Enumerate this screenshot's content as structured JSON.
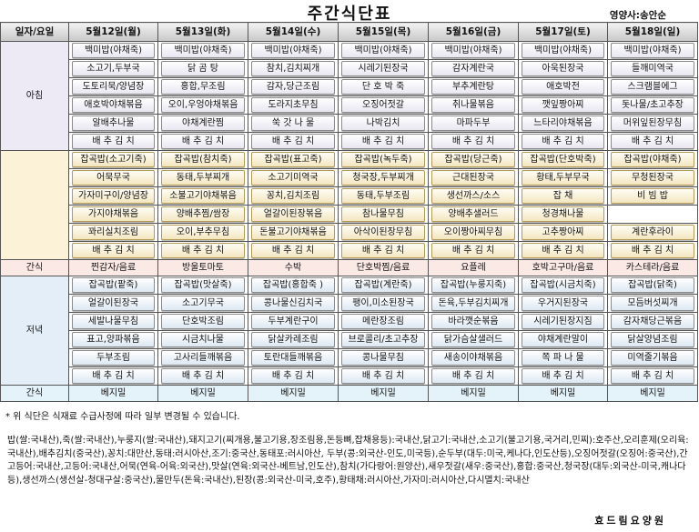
{
  "title": "주간식단표",
  "nutritionist": "영양사:송안순",
  "header": [
    "일자/요일",
    "5월12일(월)",
    "5월13일(화)",
    "5월14일(수)",
    "5월15일(목)",
    "5월16일(금)",
    "5월17일(토)",
    "5월18일(일)"
  ],
  "meals": [
    {
      "label": "아침",
      "rows": [
        [
          "백미밥(야채죽)",
          "백미밥(야채죽)",
          "백미밥(야채죽)",
          "백미밥(야채죽)",
          "백미밥(야채죽)",
          "백미밥(야채죽)",
          "백미밥(야채죽)"
        ],
        [
          "소고기,두부국",
          "닭 곰 탕",
          "참치,김치찌개",
          "시레기된장국",
          "감자계란국",
          "아욱된장국",
          "들깨미역국"
        ],
        [
          "도토리묵/양념장",
          "홍합,무조림",
          "감자,당근조림",
          "단 호 박 죽",
          "부추계란탕",
          "애호박전",
          "스크램블에그"
        ],
        [
          "애호박야채볶음",
          "오이,우엉야채볶음",
          "도라지초무침",
          "오징어젓갈",
          "취나물볶음",
          "깻잎짱아찌",
          "돗나물/초고추장"
        ],
        [
          "알배추나물",
          "야채계란찜",
          "쑥 갓 나 물",
          "나박김치",
          "마파두부",
          "느타리야채볶음",
          "머위잎된장무침"
        ],
        [
          "배 추 김 치",
          "배 추 김 치",
          "배 추 김 치",
          "배 추 김 치",
          "배 추 김 치",
          "배 추 김 치",
          "배 추 김 치"
        ]
      ]
    },
    {
      "label": "",
      "rows": [
        [
          "잡곡밥(소고기죽)",
          "잡곡밥(참치죽)",
          "잡곡밥(표고죽)",
          "잡곡밥(녹두죽)",
          "잡곡밥(당근죽)",
          "잡곡밥(단호박죽)",
          "잡곡밥(야채죽)"
        ],
        [
          "어묵무국",
          "동태,두부찌개",
          "소고기미역국",
          "청국장,두부찌개",
          "근대된장국",
          "황태,두부무국",
          "무청된장국"
        ],
        [
          "가자미구이/양념장",
          "소불고기야채볶음",
          "꽁치,김치조림",
          "동태,두부조림",
          "생선까스/소스",
          "잡 채",
          "비 빔 밥"
        ],
        [
          "가지야채볶음",
          "양배추찜/쌈장",
          "얼갈이된장볶음",
          "참나물무침",
          "양배추샐러드",
          "청경채나물",
          ""
        ],
        [
          "꽈리실치조림",
          "오이,부추무침",
          "돈불고기야채볶음",
          "아삭이된장무침",
          "오이짱아찌무침",
          "고추짱아찌",
          "계란후라이"
        ],
        [
          "배 추 김 치",
          "배 추 김 치",
          "배 추 김 치",
          "배 추 김 치",
          "배 추 김 치",
          "배 추 김 치",
          "배 추 김 치"
        ]
      ]
    }
  ],
  "snack1": {
    "label": "간식",
    "items": [
      "찐감자/음료",
      "방울토마토",
      "수박",
      "단호박찜/음료",
      "요플레",
      "호박고구마/음료",
      "카스테라/음료"
    ]
  },
  "dinner": {
    "label": "저녁",
    "rows": [
      [
        "잡곡밥(팥죽)",
        "잡곡밥(맛살죽)",
        "잡곡밥(홍합죽 )",
        "잡곡밥(계란죽)",
        "잡곡밥(누룽지죽)",
        "잡곡밥(시금치죽)",
        "잡곡밥(닭죽)"
      ],
      [
        "얼갈이된장국",
        "소고기무국",
        "콩나물신김치국",
        "팽이,미소된장국",
        "돈육,두부김치찌개",
        "우거지된장국",
        "모듬버섯찌개"
      ],
      [
        "세발나물무침",
        "단호박조림",
        "두부계란구이",
        "메란장조림",
        "바라깻순볶음",
        "시레기된장지짐",
        "감자채당근볶음"
      ],
      [
        "표고,양파볶음",
        "시금치나물",
        "닭살카레조림",
        "브로콜리/초고추장",
        "닭가슴살샐러드",
        "야채계란말이",
        "닭살양념조림"
      ],
      [
        "두부조림",
        "고사리들깨볶음",
        "토란대들깨볶음",
        "콩나물무침",
        "새송이야채볶음",
        "쪽 파 나 물",
        "미역줄기볶음"
      ],
      [
        "배 추 김 치",
        "배 추 김 치",
        "배 추 김 치",
        "배 추 김 치",
        "배 추 김 치",
        "배 추 김 치",
        "배 추 김 치"
      ]
    ]
  },
  "snack2": {
    "label": "간식",
    "items": [
      "베지밀",
      "베지밀",
      "베지밀",
      "베지밀",
      "베지밀",
      "베지밀",
      "베지밀"
    ]
  },
  "note": "* 위 식단은 식재료 수급사정에 따라 일부 변경될 수 있습니다.",
  "origin": "밥(쌀:국내산),죽(쌀:국내산),누룽지(쌀:국내산),돼지고기(찌개용,불고기용,장조림용,돈등뼈,잡채용등):국내산,닭고기:국내산,소고기(불고기용,국거리,민찌):호주산,오리훈제(오리육:국내산),배추김치(중국산),꽁치:대만산,동태:러시아산,조기:중국산,동태포:러시아산, 두부(콩:외국산-인도,미국등),순두부(대두:미국,케나다,인도산등),오징어젓갈(오징어:중국산),간고등어:국내산,고등어:국내산,어묵(연육-어육:외국산),맛살(연육:외국산-베트남,인도산),참치(가다랑어:원양산),새우젓갈(새우:중국산),홍합:중국산,청국장(대두:외국산-미국,캐나다등),생선까스(생선살-청대구살:중국산),물만두(돈육:국내산),된장(콩:외국산-미국,호주),황태채:러시아산,가자미:러시아산,다시멸치:국내산",
  "footer": "효드림요양원"
}
